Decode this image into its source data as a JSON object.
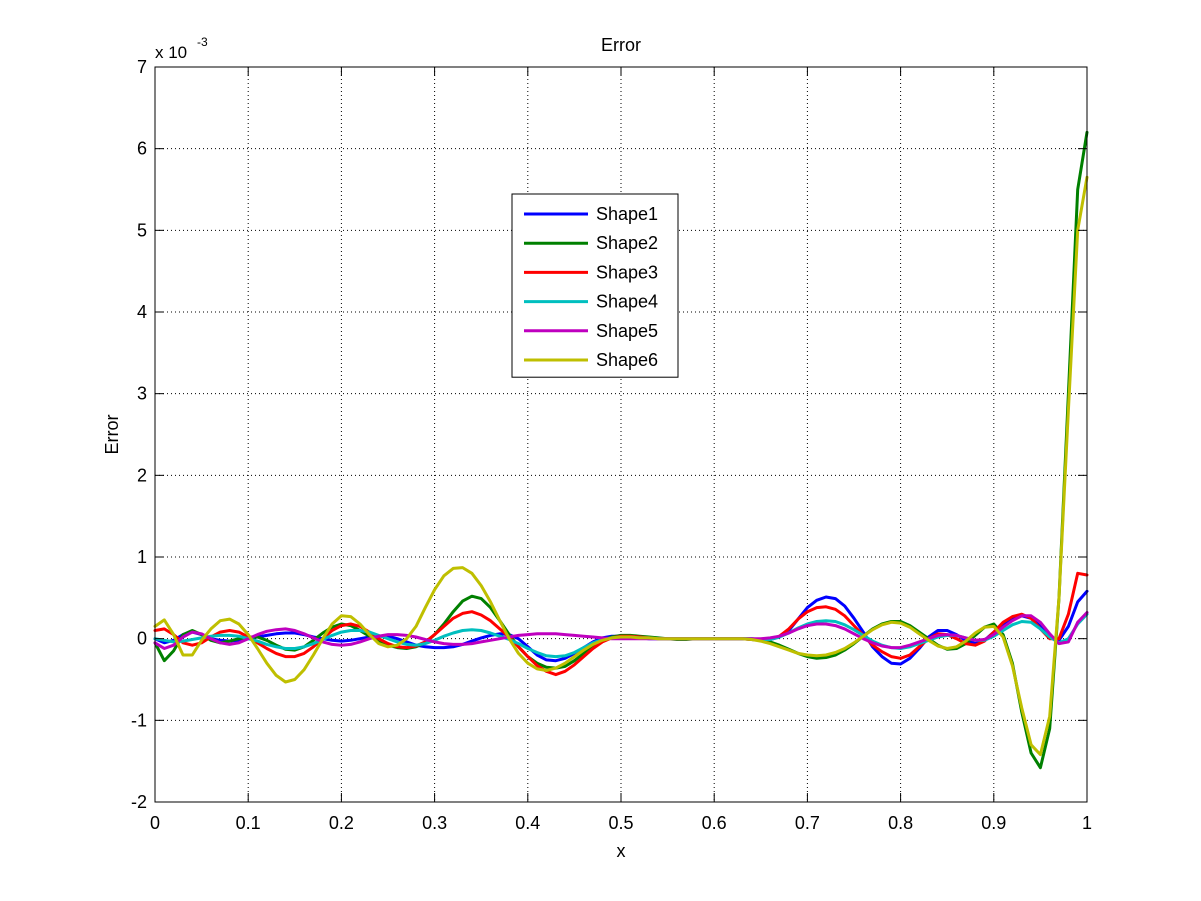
{
  "chart_data": {
    "type": "line",
    "title": "Error",
    "xlabel": "x",
    "ylabel": "Error",
    "y_multiplier": "x 10",
    "y_exponent": "-3",
    "xlim": [
      0,
      1
    ],
    "ylim": [
      -2,
      7
    ],
    "xticks": [
      "0",
      "0.1",
      "0.2",
      "0.3",
      "0.4",
      "0.5",
      "0.6",
      "0.7",
      "0.8",
      "0.9",
      "1"
    ],
    "yticks": [
      "-2",
      "-1",
      "0",
      "1",
      "2",
      "3",
      "4",
      "5",
      "6",
      "7"
    ],
    "grid": true,
    "legend_position": "upper-center",
    "x": [
      0,
      0.01,
      0.02,
      0.03,
      0.04,
      0.05,
      0.06,
      0.07,
      0.08,
      0.09,
      0.1,
      0.11,
      0.12,
      0.13,
      0.14,
      0.15,
      0.16,
      0.17,
      0.18,
      0.19,
      0.2,
      0.21,
      0.22,
      0.23,
      0.24,
      0.25,
      0.26,
      0.27,
      0.28,
      0.29,
      0.3,
      0.31,
      0.32,
      0.33,
      0.34,
      0.35,
      0.36,
      0.37,
      0.38,
      0.39,
      0.4,
      0.41,
      0.42,
      0.43,
      0.44,
      0.45,
      0.46,
      0.47,
      0.48,
      0.49,
      0.5,
      0.51,
      0.52,
      0.53,
      0.54,
      0.55,
      0.56,
      0.57,
      0.58,
      0.59,
      0.6,
      0.61,
      0.62,
      0.63,
      0.64,
      0.65,
      0.66,
      0.67,
      0.68,
      0.69,
      0.7,
      0.71,
      0.72,
      0.73,
      0.74,
      0.75,
      0.76,
      0.77,
      0.78,
      0.79,
      0.8,
      0.81,
      0.82,
      0.83,
      0.84,
      0.85,
      0.86,
      0.87,
      0.88,
      0.89,
      0.9,
      0.91,
      0.92,
      0.93,
      0.94,
      0.95,
      0.96,
      0.97,
      0.98,
      0.99,
      1.0
    ],
    "series": [
      {
        "name": "Shape1",
        "color": "#0000ff",
        "values": [
          0.0,
          -0.05,
          -0.02,
          0.05,
          0.08,
          0.05,
          0.0,
          -0.02,
          -0.03,
          -0.02,
          0.0,
          0.02,
          0.04,
          0.06,
          0.07,
          0.07,
          0.05,
          0.02,
          0.0,
          -0.02,
          -0.03,
          -0.02,
          0.0,
          0.02,
          0.03,
          0.03,
          0.0,
          -0.04,
          -0.08,
          -0.1,
          -0.11,
          -0.11,
          -0.1,
          -0.07,
          -0.03,
          0.01,
          0.04,
          0.06,
          0.05,
          0.0,
          -0.1,
          -0.2,
          -0.26,
          -0.27,
          -0.24,
          -0.18,
          -0.11,
          -0.04,
          0.01,
          0.03,
          0.03,
          0.02,
          0.01,
          0.0,
          0.0,
          0.0,
          0.0,
          0.0,
          0.0,
          0.0,
          0.0,
          0.0,
          0.0,
          0.0,
          -0.01,
          -0.02,
          -0.01,
          0.02,
          0.1,
          0.24,
          0.38,
          0.47,
          0.51,
          0.49,
          0.4,
          0.25,
          0.08,
          -0.1,
          -0.22,
          -0.3,
          -0.31,
          -0.24,
          -0.12,
          0.02,
          0.1,
          0.1,
          0.05,
          -0.02,
          -0.06,
          -0.02,
          0.08,
          0.18,
          0.25,
          0.28,
          0.25,
          0.15,
          0.02,
          -0.02,
          0.15,
          0.45,
          0.58
        ]
      },
      {
        "name": "Shape2",
        "color": "#008000",
        "values": [
          -0.05,
          -0.27,
          -0.15,
          0.05,
          0.1,
          0.05,
          -0.02,
          -0.05,
          -0.03,
          0.0,
          0.02,
          0.02,
          -0.02,
          -0.08,
          -0.13,
          -0.14,
          -0.1,
          -0.02,
          0.07,
          0.14,
          0.18,
          0.16,
          0.1,
          0.03,
          -0.03,
          -0.08,
          -0.11,
          -0.12,
          -0.1,
          -0.05,
          0.05,
          0.18,
          0.33,
          0.46,
          0.52,
          0.49,
          0.38,
          0.22,
          0.05,
          -0.1,
          -0.22,
          -0.3,
          -0.35,
          -0.36,
          -0.34,
          -0.27,
          -0.18,
          -0.09,
          -0.02,
          0.02,
          0.04,
          0.04,
          0.03,
          0.02,
          0.01,
          0.0,
          -0.01,
          -0.01,
          0.0,
          0.0,
          0.0,
          0.0,
          0.0,
          0.0,
          0.0,
          -0.01,
          -0.04,
          -0.08,
          -0.13,
          -0.18,
          -0.22,
          -0.24,
          -0.23,
          -0.2,
          -0.14,
          -0.06,
          0.03,
          0.12,
          0.18,
          0.21,
          0.21,
          0.16,
          0.08,
          0.0,
          -0.08,
          -0.13,
          -0.12,
          -0.06,
          0.04,
          0.14,
          0.18,
          0.05,
          -0.3,
          -0.9,
          -1.4,
          -1.58,
          -1.1,
          0.5,
          3.0,
          5.5,
          6.2
        ]
      },
      {
        "name": "Shape3",
        "color": "#ff0000",
        "values": [
          0.1,
          0.12,
          0.05,
          -0.05,
          -0.08,
          -0.05,
          0.02,
          0.08,
          0.1,
          0.08,
          0.02,
          -0.05,
          -0.12,
          -0.18,
          -0.22,
          -0.22,
          -0.18,
          -0.1,
          0.0,
          0.1,
          0.16,
          0.18,
          0.15,
          0.08,
          0.0,
          -0.06,
          -0.1,
          -0.11,
          -0.09,
          -0.04,
          0.05,
          0.15,
          0.25,
          0.31,
          0.33,
          0.29,
          0.22,
          0.12,
          0.02,
          -0.1,
          -0.22,
          -0.33,
          -0.4,
          -0.44,
          -0.4,
          -0.32,
          -0.22,
          -0.12,
          -0.04,
          0.01,
          0.03,
          0.03,
          0.02,
          0.01,
          0.0,
          0.0,
          0.0,
          0.0,
          0.0,
          0.0,
          0.0,
          0.0,
          0.0,
          0.0,
          -0.01,
          -0.02,
          -0.01,
          0.03,
          0.12,
          0.24,
          0.33,
          0.38,
          0.39,
          0.36,
          0.28,
          0.16,
          0.04,
          -0.08,
          -0.16,
          -0.22,
          -0.24,
          -0.2,
          -0.1,
          0.0,
          0.06,
          0.05,
          0.0,
          -0.06,
          -0.08,
          -0.03,
          0.08,
          0.2,
          0.27,
          0.3,
          0.25,
          0.12,
          0.0,
          0.0,
          0.3,
          0.8,
          0.78
        ]
      },
      {
        "name": "Shape4",
        "color": "#00bfbf",
        "values": [
          0.0,
          -0.02,
          -0.04,
          -0.03,
          -0.01,
          0.01,
          0.03,
          0.04,
          0.04,
          0.03,
          0.0,
          -0.03,
          -0.07,
          -0.1,
          -0.12,
          -0.12,
          -0.1,
          -0.06,
          -0.01,
          0.04,
          0.08,
          0.1,
          0.1,
          0.08,
          0.04,
          0.0,
          -0.04,
          -0.07,
          -0.08,
          -0.06,
          -0.02,
          0.03,
          0.07,
          0.1,
          0.11,
          0.1,
          0.07,
          0.03,
          -0.01,
          -0.06,
          -0.12,
          -0.17,
          -0.21,
          -0.22,
          -0.21,
          -0.17,
          -0.11,
          -0.05,
          -0.01,
          0.01,
          0.02,
          0.02,
          0.01,
          0.01,
          0.0,
          0.0,
          0.0,
          0.0,
          0.0,
          0.0,
          0.0,
          0.0,
          0.0,
          0.0,
          0.0,
          -0.01,
          -0.01,
          0.02,
          0.07,
          0.13,
          0.18,
          0.21,
          0.22,
          0.21,
          0.17,
          0.11,
          0.04,
          -0.03,
          -0.08,
          -0.11,
          -0.12,
          -0.1,
          -0.06,
          -0.02,
          0.02,
          0.04,
          0.04,
          0.01,
          -0.02,
          -0.02,
          0.03,
          0.1,
          0.17,
          0.21,
          0.2,
          0.12,
          0.02,
          -0.05,
          0.0,
          0.18,
          0.3
        ]
      },
      {
        "name": "Shape5",
        "color": "#bf00bf",
        "values": [
          -0.05,
          -0.12,
          -0.08,
          0.02,
          0.08,
          0.06,
          0.0,
          -0.05,
          -0.07,
          -0.05,
          0.0,
          0.05,
          0.09,
          0.11,
          0.12,
          0.1,
          0.06,
          0.01,
          -0.04,
          -0.07,
          -0.08,
          -0.07,
          -0.04,
          0.0,
          0.03,
          0.05,
          0.05,
          0.04,
          0.02,
          -0.01,
          -0.04,
          -0.06,
          -0.07,
          -0.07,
          -0.06,
          -0.04,
          -0.02,
          0.0,
          0.02,
          0.04,
          0.05,
          0.06,
          0.06,
          0.06,
          0.05,
          0.04,
          0.03,
          0.02,
          0.01,
          0.0,
          0.0,
          0.0,
          0.0,
          0.0,
          0.0,
          0.0,
          0.0,
          0.0,
          0.0,
          0.0,
          0.0,
          0.0,
          0.0,
          0.0,
          0.0,
          0.0,
          0.01,
          0.03,
          0.07,
          0.12,
          0.16,
          0.18,
          0.18,
          0.16,
          0.12,
          0.06,
          0.0,
          -0.05,
          -0.09,
          -0.11,
          -0.11,
          -0.08,
          -0.04,
          0.0,
          0.04,
          0.05,
          0.04,
          0.01,
          -0.02,
          -0.01,
          0.05,
          0.14,
          0.22,
          0.28,
          0.28,
          0.2,
          0.06,
          -0.06,
          -0.04,
          0.2,
          0.32
        ]
      },
      {
        "name": "Shape6",
        "color": "#bfbf00",
        "values": [
          0.15,
          0.23,
          0.05,
          -0.2,
          -0.2,
          -0.02,
          0.12,
          0.22,
          0.24,
          0.18,
          0.05,
          -0.12,
          -0.3,
          -0.45,
          -0.53,
          -0.5,
          -0.38,
          -0.2,
          0.0,
          0.18,
          0.28,
          0.27,
          0.18,
          0.05,
          -0.06,
          -0.1,
          -0.08,
          0.0,
          0.15,
          0.38,
          0.6,
          0.77,
          0.86,
          0.87,
          0.8,
          0.65,
          0.45,
          0.22,
          0.0,
          -0.18,
          -0.3,
          -0.37,
          -0.39,
          -0.36,
          -0.3,
          -0.22,
          -0.14,
          -0.07,
          -0.02,
          0.01,
          0.02,
          0.02,
          0.01,
          0.01,
          0.0,
          0.0,
          0.0,
          0.0,
          0.0,
          0.0,
          0.0,
          0.0,
          0.0,
          0.0,
          -0.01,
          -0.03,
          -0.06,
          -0.1,
          -0.14,
          -0.18,
          -0.2,
          -0.21,
          -0.2,
          -0.17,
          -0.12,
          -0.05,
          0.03,
          0.11,
          0.17,
          0.2,
          0.19,
          0.14,
          0.06,
          -0.02,
          -0.09,
          -0.12,
          -0.1,
          -0.03,
          0.07,
          0.14,
          0.15,
          0.02,
          -0.33,
          -0.85,
          -1.3,
          -1.42,
          -0.95,
          0.5,
          2.8,
          5.0,
          5.65
        ]
      }
    ]
  }
}
